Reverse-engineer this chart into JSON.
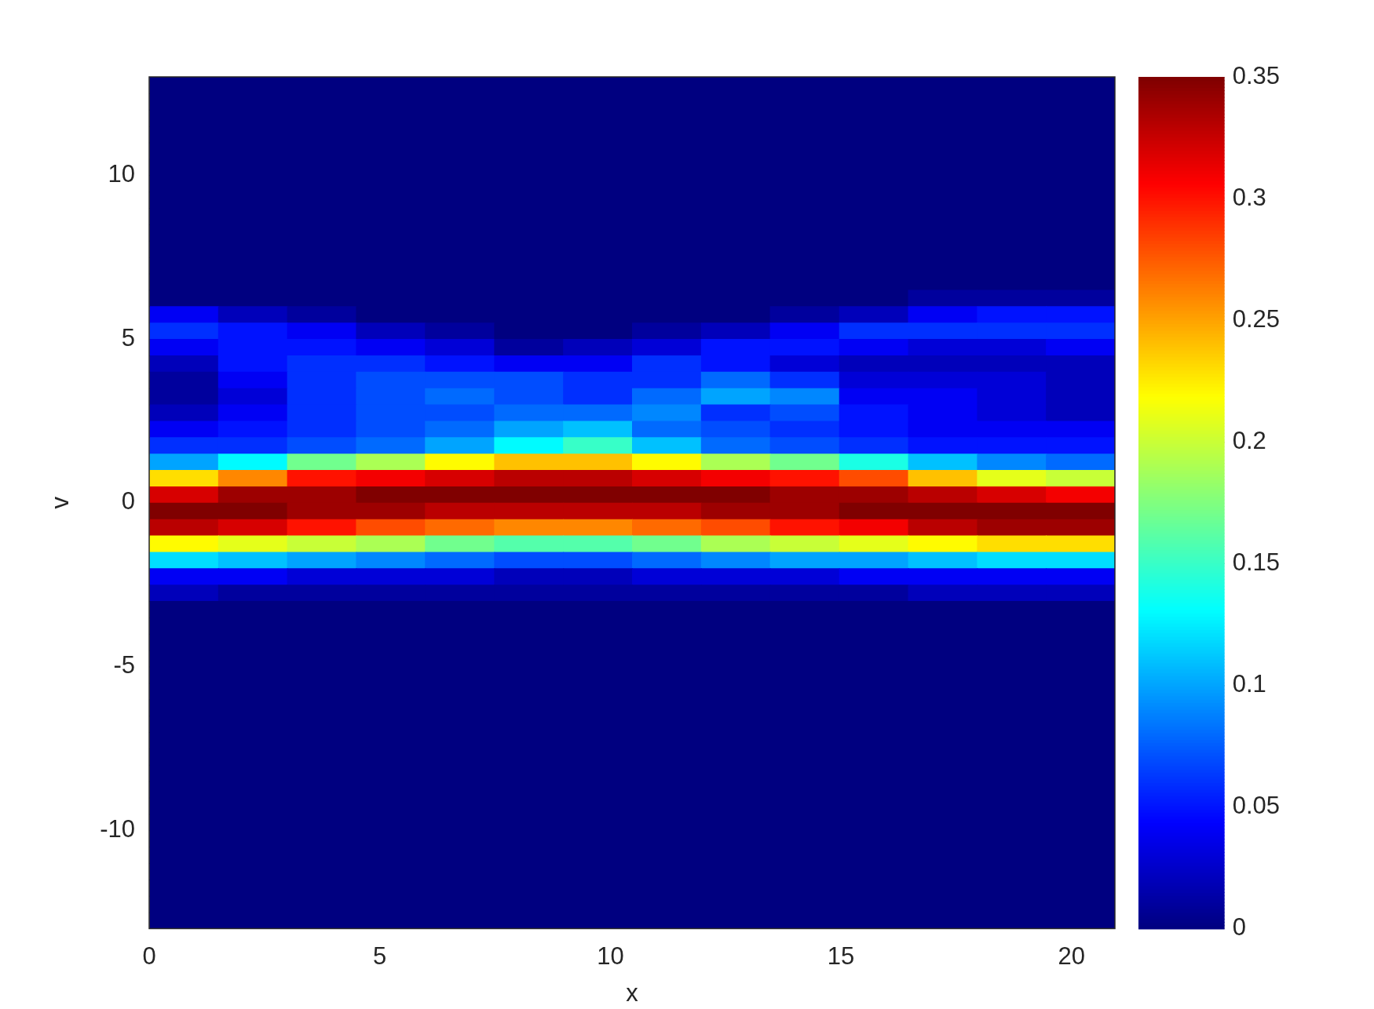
{
  "chart_data": {
    "type": "heatmap",
    "xlabel": "x",
    "ylabel": "v",
    "x": [
      0.75,
      2.24,
      3.74,
      5.23,
      6.73,
      8.23,
      9.72,
      11.22,
      12.71,
      14.21,
      15.71,
      17.2,
      18.7,
      20.19
    ],
    "y": [
      12.75,
      12.25,
      11.75,
      11.25,
      10.75,
      10.25,
      9.75,
      9.25,
      8.75,
      8.25,
      7.75,
      7.25,
      6.75,
      6.25,
      5.75,
      5.25,
      4.75,
      4.25,
      3.75,
      3.25,
      2.75,
      2.25,
      1.75,
      1.25,
      0.75,
      0.25,
      -0.25,
      -0.75,
      -1.25,
      -1.75,
      -2.25,
      -2.75,
      -3.25,
      -3.75,
      -4.25,
      -4.75,
      -5.25,
      -5.75,
      -6.25,
      -6.75,
      -7.25,
      -7.75,
      -8.25,
      -8.75,
      -9.25,
      -9.75,
      -10.25,
      -10.75,
      -11.25,
      -11.75,
      -12.25,
      -12.75
    ],
    "cells": [
      [
        0,
        0,
        0,
        0,
        0,
        0,
        0,
        0,
        0,
        0,
        0,
        0,
        0,
        0
      ],
      [
        0,
        0,
        0,
        0,
        0,
        0,
        0,
        0,
        0,
        0,
        0,
        0,
        0,
        0
      ],
      [
        0,
        0,
        0,
        0,
        0,
        0,
        0,
        0,
        0,
        0,
        0,
        0,
        0,
        0
      ],
      [
        0,
        0,
        0,
        0,
        0,
        0,
        0,
        0,
        0,
        0,
        0,
        0,
        0,
        0
      ],
      [
        0,
        0,
        0,
        0,
        0,
        0,
        0,
        0,
        0,
        0,
        0,
        0,
        0,
        0
      ],
      [
        0,
        0,
        0,
        0,
        0,
        0,
        0,
        0,
        0,
        0,
        0,
        0,
        0,
        0
      ],
      [
        0,
        0,
        0,
        0,
        0,
        0,
        0,
        0,
        0,
        0,
        0,
        0,
        0,
        0
      ],
      [
        0,
        0,
        0,
        0,
        0,
        0,
        0,
        0,
        0,
        0,
        0,
        0,
        0,
        0
      ],
      [
        0,
        0,
        0,
        0,
        0,
        0,
        0,
        0,
        0,
        0,
        0,
        0,
        0,
        0
      ],
      [
        0,
        0,
        0,
        0,
        0,
        0,
        0,
        0,
        0,
        0,
        0,
        0,
        0,
        0
      ],
      [
        0,
        0,
        0,
        0,
        0,
        0,
        0,
        0,
        0,
        0,
        0,
        0,
        0,
        0
      ],
      [
        0,
        0,
        0,
        0,
        0,
        0,
        0,
        0,
        0,
        0,
        0,
        0,
        0,
        0
      ],
      [
        0,
        0,
        0,
        0,
        0,
        0,
        0,
        0,
        0,
        0,
        0,
        0,
        0,
        0
      ],
      [
        0,
        0,
        0,
        0,
        0,
        0,
        0,
        0,
        0,
        0,
        0,
        0.01,
        0.01,
        0.01
      ],
      [
        0.04,
        0.02,
        0.01,
        0,
        0,
        0,
        0,
        0,
        0,
        0.01,
        0.02,
        0.04,
        0.05,
        0.05
      ],
      [
        0.06,
        0.05,
        0.04,
        0.02,
        0.01,
        0,
        0,
        0.01,
        0.02,
        0.04,
        0.06,
        0.06,
        0.06,
        0.06
      ],
      [
        0.04,
        0.05,
        0.05,
        0.04,
        0.03,
        0.01,
        0.02,
        0.03,
        0.05,
        0.05,
        0.04,
        0.03,
        0.03,
        0.04
      ],
      [
        0.02,
        0.05,
        0.06,
        0.06,
        0.05,
        0.04,
        0.04,
        0.06,
        0.05,
        0.03,
        0.02,
        0.02,
        0.02,
        0.02
      ],
      [
        0.01,
        0.04,
        0.06,
        0.07,
        0.07,
        0.07,
        0.06,
        0.06,
        0.08,
        0.06,
        0.03,
        0.03,
        0.03,
        0.02
      ],
      [
        0.01,
        0.03,
        0.06,
        0.07,
        0.08,
        0.07,
        0.06,
        0.08,
        0.1,
        0.09,
        0.04,
        0.04,
        0.03,
        0.02
      ],
      [
        0.02,
        0.04,
        0.06,
        0.07,
        0.07,
        0.08,
        0.08,
        0.09,
        0.06,
        0.07,
        0.05,
        0.04,
        0.03,
        0.02
      ],
      [
        0.04,
        0.05,
        0.06,
        0.07,
        0.08,
        0.1,
        0.11,
        0.08,
        0.07,
        0.06,
        0.05,
        0.04,
        0.04,
        0.04
      ],
      [
        0.06,
        0.06,
        0.07,
        0.08,
        0.1,
        0.13,
        0.15,
        0.11,
        0.08,
        0.07,
        0.06,
        0.05,
        0.05,
        0.05
      ],
      [
        0.1,
        0.13,
        0.17,
        0.19,
        0.22,
        0.24,
        0.24,
        0.22,
        0.19,
        0.17,
        0.14,
        0.11,
        0.09,
        0.08
      ],
      [
        0.23,
        0.26,
        0.3,
        0.31,
        0.32,
        0.33,
        0.33,
        0.32,
        0.31,
        0.3,
        0.28,
        0.24,
        0.21,
        0.2
      ],
      [
        0.32,
        0.34,
        0.34,
        0.35,
        0.35,
        0.35,
        0.35,
        0.35,
        0.35,
        0.34,
        0.34,
        0.33,
        0.32,
        0.31
      ],
      [
        0.35,
        0.35,
        0.34,
        0.34,
        0.33,
        0.33,
        0.33,
        0.33,
        0.34,
        0.34,
        0.35,
        0.35,
        0.35,
        0.35
      ],
      [
        0.33,
        0.32,
        0.3,
        0.28,
        0.27,
        0.26,
        0.26,
        0.27,
        0.28,
        0.3,
        0.31,
        0.33,
        0.34,
        0.34
      ],
      [
        0.22,
        0.21,
        0.2,
        0.19,
        0.17,
        0.16,
        0.16,
        0.17,
        0.19,
        0.2,
        0.21,
        0.22,
        0.23,
        0.23
      ],
      [
        0.12,
        0.11,
        0.1,
        0.09,
        0.08,
        0.07,
        0.07,
        0.08,
        0.09,
        0.1,
        0.1,
        0.11,
        0.12,
        0.12
      ],
      [
        0.04,
        0.04,
        0.03,
        0.03,
        0.03,
        0.02,
        0.02,
        0.03,
        0.03,
        0.03,
        0.04,
        0.04,
        0.04,
        0.04
      ],
      [
        0.02,
        0.01,
        0.01,
        0.01,
        0.01,
        0.01,
        0.01,
        0.01,
        0.01,
        0.01,
        0.01,
        0.02,
        0.02,
        0.02
      ],
      [
        0,
        0,
        0,
        0,
        0,
        0,
        0,
        0,
        0,
        0,
        0,
        0,
        0,
        0
      ],
      [
        0,
        0,
        0,
        0,
        0,
        0,
        0,
        0,
        0,
        0,
        0,
        0,
        0,
        0
      ],
      [
        0,
        0,
        0,
        0,
        0,
        0,
        0,
        0,
        0,
        0,
        0,
        0,
        0,
        0
      ],
      [
        0,
        0,
        0,
        0,
        0,
        0,
        0,
        0,
        0,
        0,
        0,
        0,
        0,
        0
      ],
      [
        0,
        0,
        0,
        0,
        0,
        0,
        0,
        0,
        0,
        0,
        0,
        0,
        0,
        0
      ],
      [
        0,
        0,
        0,
        0,
        0,
        0,
        0,
        0,
        0,
        0,
        0,
        0,
        0,
        0
      ],
      [
        0,
        0,
        0,
        0,
        0,
        0,
        0,
        0,
        0,
        0,
        0,
        0,
        0,
        0
      ],
      [
        0,
        0,
        0,
        0,
        0,
        0,
        0,
        0,
        0,
        0,
        0,
        0,
        0,
        0
      ],
      [
        0,
        0,
        0,
        0,
        0,
        0,
        0,
        0,
        0,
        0,
        0,
        0,
        0,
        0
      ],
      [
        0,
        0,
        0,
        0,
        0,
        0,
        0,
        0,
        0,
        0,
        0,
        0,
        0,
        0
      ],
      [
        0,
        0,
        0,
        0,
        0,
        0,
        0,
        0,
        0,
        0,
        0,
        0,
        0,
        0
      ],
      [
        0,
        0,
        0,
        0,
        0,
        0,
        0,
        0,
        0,
        0,
        0,
        0,
        0,
        0
      ],
      [
        0,
        0,
        0,
        0,
        0,
        0,
        0,
        0,
        0,
        0,
        0,
        0,
        0,
        0
      ],
      [
        0,
        0,
        0,
        0,
        0,
        0,
        0,
        0,
        0,
        0,
        0,
        0,
        0,
        0
      ],
      [
        0,
        0,
        0,
        0,
        0,
        0,
        0,
        0,
        0,
        0,
        0,
        0,
        0,
        0
      ],
      [
        0,
        0,
        0,
        0,
        0,
        0,
        0,
        0,
        0,
        0,
        0,
        0,
        0,
        0
      ],
      [
        0,
        0,
        0,
        0,
        0,
        0,
        0,
        0,
        0,
        0,
        0,
        0,
        0,
        0
      ],
      [
        0,
        0,
        0,
        0,
        0,
        0,
        0,
        0,
        0,
        0,
        0,
        0,
        0,
        0
      ],
      [
        0,
        0,
        0,
        0,
        0,
        0,
        0,
        0,
        0,
        0,
        0,
        0,
        0,
        0
      ],
      [
        0,
        0,
        0,
        0,
        0,
        0,
        0,
        0,
        0,
        0,
        0,
        0,
        0,
        0
      ]
    ],
    "xlim": [
      0,
      20.94
    ],
    "ylim": [
      -13,
      13
    ],
    "xticks": [
      0,
      5,
      10,
      15,
      20
    ],
    "yticks": [
      -10,
      -5,
      0,
      5,
      10
    ],
    "clim": [
      0,
      0.35
    ],
    "cticks": [
      0,
      0.05,
      0.1,
      0.15,
      0.2,
      0.25,
      0.3,
      0.35
    ]
  }
}
